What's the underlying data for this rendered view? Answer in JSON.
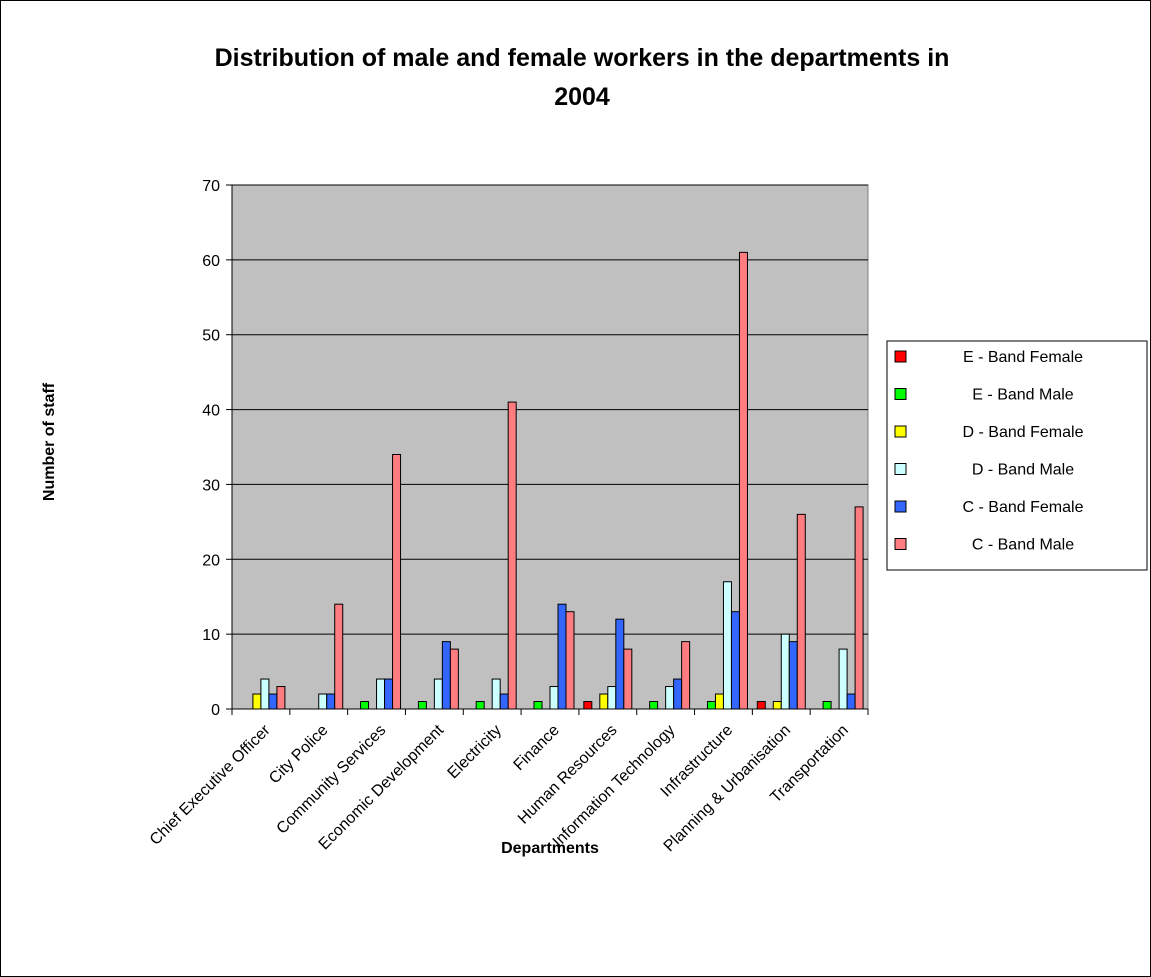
{
  "chart_data": {
    "type": "bar",
    "title_line1": "Distribution of male and female workers in the departments in",
    "title_line2": "2004",
    "xlabel": "Departments",
    "ylabel": "Number of staff",
    "ylim": [
      0,
      70
    ],
    "yticks": [
      0,
      10,
      20,
      30,
      40,
      50,
      60,
      70
    ],
    "grid": true,
    "legend_position": "right",
    "categories": [
      "Chief Executive Officer",
      "City Police",
      "Community Services",
      "Economic Development",
      "Electricity",
      "Finance",
      "Human Resources",
      "Information Technology",
      "Infrastructure",
      "Planning & Urbanisation",
      "Transportation"
    ],
    "series": [
      {
        "name": "E - Band Female",
        "color": "#ff0000",
        "values": [
          0,
          0,
          0,
          0,
          0,
          0,
          1,
          0,
          0,
          1,
          0
        ]
      },
      {
        "name": "E - Band Male",
        "color": "#00ff00",
        "values": [
          0,
          0,
          1,
          1,
          1,
          1,
          0,
          1,
          1,
          0,
          1
        ]
      },
      {
        "name": "D - Band Female",
        "color": "#ffff00",
        "values": [
          2,
          0,
          0,
          0,
          0,
          0,
          2,
          0,
          2,
          1,
          0
        ]
      },
      {
        "name": "D - Band Male",
        "color": "#ccffff",
        "values": [
          4,
          2,
          4,
          4,
          4,
          3,
          3,
          3,
          17,
          10,
          8
        ]
      },
      {
        "name": "C - Band Female",
        "color": "#3366ff",
        "values": [
          2,
          2,
          4,
          9,
          2,
          14,
          12,
          4,
          13,
          9,
          2
        ]
      },
      {
        "name": "C - Band Male",
        "color": "#ff7c80",
        "values": [
          3,
          14,
          34,
          8,
          41,
          13,
          8,
          9,
          61,
          26,
          27
        ]
      }
    ],
    "plot_area_color": "#c0c0c0"
  }
}
